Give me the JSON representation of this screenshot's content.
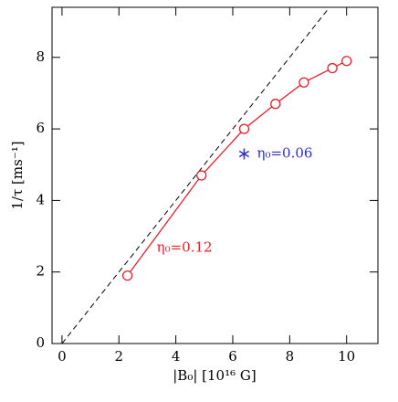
{
  "chart_data": {
    "type": "line",
    "xlabel": "|B₀| [10¹⁶ G]",
    "ylabel": "1/τ [ms⁻¹]",
    "xlim": [
      -0.35,
      11.1
    ],
    "ylim": [
      0,
      9.4
    ],
    "xticks": [
      0,
      2,
      4,
      6,
      8,
      10
    ],
    "yticks": [
      0,
      2,
      4,
      6,
      8
    ],
    "series": [
      {
        "name": "η₀=0.12",
        "color": "#e8202a",
        "marker": "circle",
        "x": [
          2.3,
          4.9,
          6.4,
          7.5,
          8.5,
          9.5,
          10.0
        ],
        "values": [
          1.9,
          4.7,
          6.0,
          6.7,
          7.3,
          7.7,
          7.9
        ]
      },
      {
        "name": "η₀=0.06",
        "color": "#2b2bd8",
        "marker": "star",
        "x": [
          6.4
        ],
        "values": [
          5.3
        ]
      }
    ],
    "reference_line": {
      "x": [
        0,
        9.4
      ],
      "values": [
        0,
        9.4
      ],
      "color": "#000000"
    }
  }
}
